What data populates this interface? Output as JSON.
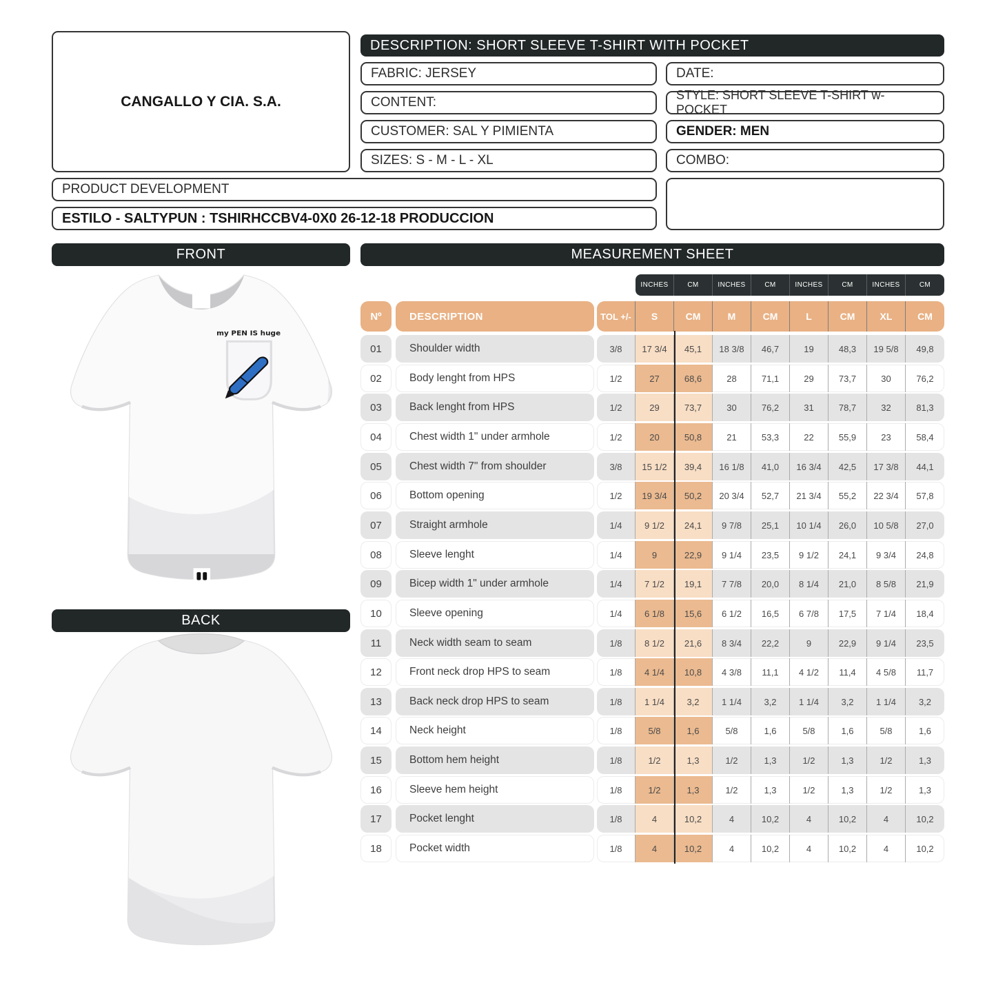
{
  "header": {
    "company": "CANGALLO Y CIA. S.A.",
    "description": "DESCRIPTION: SHORT SLEEVE T-SHIRT WITH POCKET",
    "fabric": "FABRIC: JERSEY",
    "content": "CONTENT:",
    "customer": "CUSTOMER: SAL Y PIMIENTA",
    "sizes": "SIZES: S - M - L - XL",
    "date": "DATE:",
    "style": "STYLE: SHORT SLEEVE T-SHIRT w-POCKET",
    "gender": "GENDER: MEN",
    "combo": "COMBO:",
    "product_development": "PRODUCT DEVELOPMENT",
    "estilo": "ESTILO - SALTYPUN : TSHIRHCCBV4-0X0 26-12-18 PRODUCCION"
  },
  "panels": {
    "front_label": "FRONT",
    "back_label": "BACK",
    "sheet_title": "MEASUREMENT SHEET"
  },
  "front_graphic": {
    "pocket_slogan": "my PEN IS huge"
  },
  "colors": {
    "bar_black": "#222728",
    "units_bar": "#2b3132",
    "header_tan": "#e9b184",
    "highlight_light": "#f8dec5",
    "highlight_dark": "#ebba90",
    "row_gray": "#e4e4e4",
    "pen_blue": "#2e6fc4"
  },
  "table": {
    "unit_header": [
      "INCHES",
      "CM",
      "INCHES",
      "CM",
      "INCHES",
      "CM",
      "INCHES",
      "CM"
    ],
    "columns": [
      "Nº",
      "DESCRIPTION",
      "TOL +/-",
      "S",
      "CM",
      "M",
      "CM",
      "L",
      "CM",
      "XL",
      "CM"
    ],
    "rows": [
      {
        "no": "01",
        "desc": "Shoulder width",
        "tol": "3/8",
        "vals": [
          "17 3/4",
          "45,1",
          "18 3/8",
          "46,7",
          "19",
          "48,3",
          "19 5/8",
          "49,8"
        ]
      },
      {
        "no": "02",
        "desc": "Body lenght from  HPS",
        "tol": "1/2",
        "vals": [
          "27",
          "68,6",
          "28",
          "71,1",
          "29",
          "73,7",
          "30",
          "76,2"
        ]
      },
      {
        "no": "03",
        "desc": "Back lenght from  HPS",
        "tol": "1/2",
        "vals": [
          "29",
          "73,7",
          "30",
          "76,2",
          "31",
          "78,7",
          "32",
          "81,3"
        ]
      },
      {
        "no": "04",
        "desc": "Chest width  1\" under armhole",
        "tol": "1/2",
        "vals": [
          "20",
          "50,8",
          "21",
          "53,3",
          "22",
          "55,9",
          "23",
          "58,4"
        ]
      },
      {
        "no": "05",
        "desc": "Chest width  7\" from  shoulder",
        "tol": "3/8",
        "vals": [
          "15 1/2",
          "39,4",
          "16 1/8",
          "41,0",
          "16 3/4",
          "42,5",
          "17 3/8",
          "44,1"
        ]
      },
      {
        "no": "06",
        "desc": "Bottom opening",
        "tol": "1/2",
        "vals": [
          "19 3/4",
          "50,2",
          "20 3/4",
          "52,7",
          "21 3/4",
          "55,2",
          "22 3/4",
          "57,8"
        ]
      },
      {
        "no": "07",
        "desc": "Straight armhole",
        "tol": "1/4",
        "vals": [
          "9 1/2",
          "24,1",
          "9 7/8",
          "25,1",
          "10 1/4",
          "26,0",
          "10 5/8",
          "27,0"
        ]
      },
      {
        "no": "08",
        "desc": "Sleeve lenght",
        "tol": "1/4",
        "vals": [
          "9",
          "22,9",
          "9 1/4",
          "23,5",
          "9 1/2",
          "24,1",
          "9 3/4",
          "24,8"
        ]
      },
      {
        "no": "09",
        "desc": "Bicep width 1\" under armhole",
        "tol": "1/4",
        "vals": [
          "7 1/2",
          "19,1",
          "7 7/8",
          "20,0",
          "8 1/4",
          "21,0",
          "8 5/8",
          "21,9"
        ]
      },
      {
        "no": "10",
        "desc": "Sleeve opening",
        "tol": "1/4",
        "vals": [
          "6 1/8",
          "15,6",
          "6 1/2",
          "16,5",
          "6 7/8",
          "17,5",
          "7 1/4",
          "18,4"
        ]
      },
      {
        "no": "11",
        "desc": "Neck width seam to seam",
        "tol": "1/8",
        "vals": [
          "8 1/2",
          "21,6",
          "8 3/4",
          "22,2",
          "9",
          "22,9",
          "9 1/4",
          "23,5"
        ]
      },
      {
        "no": "12",
        "desc": "Front neck drop HPS to seam",
        "tol": "1/8",
        "vals": [
          "4 1/4",
          "10,8",
          "4 3/8",
          "11,1",
          "4 1/2",
          "11,4",
          "4 5/8",
          "11,7"
        ]
      },
      {
        "no": "13",
        "desc": "Back neck drop HPS to seam",
        "tol": "1/8",
        "vals": [
          "1 1/4",
          "3,2",
          "1 1/4",
          "3,2",
          "1 1/4",
          "3,2",
          "1 1/4",
          "3,2"
        ]
      },
      {
        "no": "14",
        "desc": "Neck height",
        "tol": "1/8",
        "vals": [
          "5/8",
          "1,6",
          "5/8",
          "1,6",
          "5/8",
          "1,6",
          "5/8",
          "1,6"
        ]
      },
      {
        "no": "15",
        "desc": "Bottom hem height",
        "tol": "1/8",
        "vals": [
          "1/2",
          "1,3",
          "1/2",
          "1,3",
          "1/2",
          "1,3",
          "1/2",
          "1,3"
        ]
      },
      {
        "no": "16",
        "desc": "Sleeve hem height",
        "tol": "1/8",
        "vals": [
          "1/2",
          "1,3",
          "1/2",
          "1,3",
          "1/2",
          "1,3",
          "1/2",
          "1,3"
        ]
      },
      {
        "no": "17",
        "desc": "Pocket lenght",
        "tol": "1/8",
        "vals": [
          "4",
          "10,2",
          "4",
          "10,2",
          "4",
          "10,2",
          "4",
          "10,2"
        ]
      },
      {
        "no": "18",
        "desc": "Pocket width",
        "tol": "1/8",
        "vals": [
          "4",
          "10,2",
          "4",
          "10,2",
          "4",
          "10,2",
          "4",
          "10,2"
        ]
      }
    ]
  }
}
